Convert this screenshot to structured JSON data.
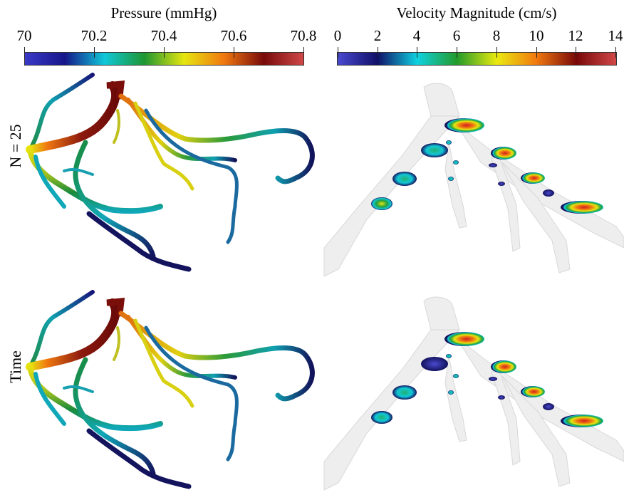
{
  "pressure_colorbar": {
    "title": "Pressure (mmHg)",
    "ticks": [
      "70",
      "70.2",
      "70.4",
      "70.6",
      "70.8"
    ],
    "range": [
      70,
      70.8
    ],
    "colormap": [
      "#3a3ac8",
      "#16168a",
      "#0fc8d8",
      "#1e9632",
      "#e6e610",
      "#f07810",
      "#780a0a",
      "#d04848"
    ]
  },
  "velocity_colorbar": {
    "title": "Velocity Magnitude (cm/s)",
    "ticks": [
      "0",
      "2",
      "4",
      "6",
      "8",
      "10",
      "12",
      "14"
    ],
    "range": [
      0,
      14
    ],
    "colormap": [
      "#4a4ad0",
      "#101068",
      "#10d2e0",
      "#229a2a",
      "#eaea10",
      "#f07810",
      "#780808",
      "#d24848"
    ]
  },
  "rows": [
    {
      "label": "N = 25"
    },
    {
      "label": "Time"
    }
  ]
}
